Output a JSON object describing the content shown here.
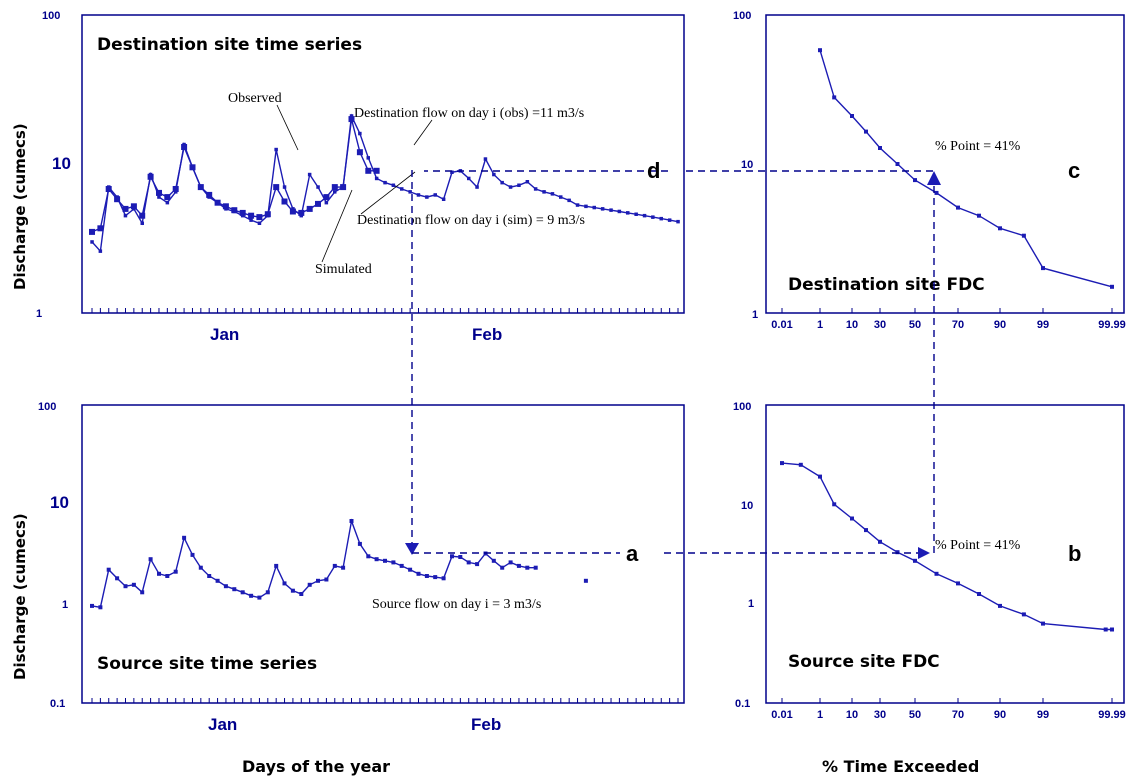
{
  "labels": {
    "ylabel_top": "Discharge (cumecs)",
    "ylabel_bottom": "Discharge (cumecs)",
    "xlabel_days": "Days of the year",
    "xlabel_percent": "% Time Exceeded",
    "letter_a": "a",
    "letter_b": "b",
    "letter_c": "c",
    "letter_d": "d"
  },
  "colors": {
    "series": "#1c1cb4",
    "axes": "#00008B"
  },
  "chart_data": [
    {
      "id": "dest_ts",
      "type": "line",
      "title": "Destination site time series",
      "ylabel": "Discharge (cumecs)",
      "yscale": "log",
      "ylim": [
        1,
        100
      ],
      "yticks": [
        "1",
        "10",
        "100"
      ],
      "xticks": [
        "Jan",
        "Feb"
      ],
      "annotations": {
        "observed": "Observed",
        "simulated": "Simulated",
        "obs_flow": "Destination flow on day i (obs) =11 m3/s",
        "sim_flow": "Destination flow on day i (sim) = 9 m3/s"
      },
      "series": [
        {
          "name": "Observed",
          "x": [
            1,
            2,
            3,
            4,
            5,
            6,
            7,
            8,
            9,
            10,
            11,
            12,
            13,
            14,
            15,
            16,
            17,
            18,
            19,
            20,
            21,
            22,
            23,
            24,
            25,
            26,
            27,
            28,
            29,
            30,
            31,
            32,
            33,
            34,
            35,
            36,
            37,
            38,
            39,
            40,
            41,
            42,
            43,
            44,
            45,
            46,
            47,
            48,
            49,
            50,
            51,
            52,
            53,
            54,
            55,
            56,
            57,
            58,
            59,
            60,
            61,
            62,
            63,
            64,
            65,
            66,
            67,
            68,
            69,
            70,
            71
          ],
          "values": [
            3.0,
            2.6,
            7.0,
            6.0,
            4.5,
            5.0,
            4.0,
            8.5,
            6.0,
            5.5,
            6.5,
            13.5,
            9.5,
            7.0,
            6.0,
            5.5,
            5.0,
            4.8,
            4.5,
            4.2,
            4.0,
            4.5,
            12.5,
            7.0,
            5.0,
            4.5,
            8.5,
            7.0,
            5.5,
            6.5,
            7.0,
            21,
            16,
            11,
            8.0,
            7.5,
            7.2,
            6.8,
            6.5,
            6.2,
            6.0,
            6.2,
            5.8,
            8.8,
            9.0,
            8.0,
            7.0,
            10.8,
            8.5,
            7.5,
            7.0,
            7.2,
            7.6,
            6.8,
            6.5,
            6.3,
            6.0,
            5.7,
            5.3,
            5.2,
            5.1,
            5.0,
            4.9,
            4.8,
            4.7,
            4.6,
            4.5,
            4.4,
            4.3,
            4.2,
            4.1
          ]
        },
        {
          "name": "Simulated",
          "x": [
            1,
            2,
            3,
            4,
            5,
            6,
            7,
            8,
            9,
            10,
            11,
            12,
            13,
            14,
            15,
            16,
            17,
            18,
            19,
            20,
            21,
            22,
            23,
            24,
            25,
            26,
            27,
            28,
            29,
            30,
            31,
            32,
            33,
            34,
            35
          ],
          "values": [
            3.5,
            3.7,
            6.8,
            5.8,
            5.0,
            5.2,
            4.5,
            8.2,
            6.4,
            6.0,
            6.8,
            13.0,
            9.5,
            7.0,
            6.2,
            5.5,
            5.2,
            4.9,
            4.7,
            4.5,
            4.4,
            4.6,
            7.0,
            5.6,
            4.8,
            4.7,
            5.0,
            5.4,
            6.0,
            7.0,
            7.0,
            20,
            12,
            9.0,
            9.0
          ]
        }
      ]
    },
    {
      "id": "dest_fdc",
      "type": "line",
      "title": "Destination site FDC",
      "yscale": "log",
      "ylim": [
        1,
        100
      ],
      "yticks": [
        "1",
        "10",
        "100"
      ],
      "xticks": [
        "0.01",
        "1",
        "10",
        "30",
        "50",
        "70",
        "90",
        "99",
        "99.99"
      ],
      "annotations": {
        "point": "% Point = 41%"
      },
      "series": [
        {
          "name": "",
          "x": [
            1,
            5,
            10,
            20,
            30,
            40,
            50,
            60,
            70,
            80,
            90,
            95,
            99,
            99.99
          ],
          "values": [
            58,
            28,
            21,
            16.5,
            12.8,
            10,
            7.8,
            6.4,
            5.1,
            4.5,
            3.7,
            3.3,
            2.0,
            1.5
          ]
        }
      ]
    },
    {
      "id": "source_ts",
      "type": "line",
      "title": "Source site time series",
      "ylabel": "Discharge (cumecs)",
      "yscale": "log",
      "ylim": [
        0.1,
        100
      ],
      "yticks": [
        "0.1",
        "1",
        "10",
        "100"
      ],
      "xticks": [
        "Jan",
        "Feb"
      ],
      "annotations": {
        "source_flow": "Source flow on day  i = 3  m3/s"
      },
      "series": [
        {
          "name": "",
          "x": [
            1,
            2,
            3,
            4,
            5,
            6,
            7,
            8,
            9,
            10,
            11,
            12,
            13,
            14,
            15,
            16,
            17,
            18,
            19,
            20,
            21,
            22,
            23,
            24,
            25,
            26,
            27,
            28,
            29,
            30,
            31,
            32,
            33,
            34,
            35,
            36,
            37,
            38,
            39,
            40,
            41,
            42,
            43,
            44,
            45,
            46,
            47,
            48,
            49,
            50,
            51,
            52,
            53,
            54,
            55,
            56,
            57,
            58,
            59,
            60
          ],
          "values": [
            0.95,
            0.92,
            2.2,
            1.8,
            1.5,
            1.55,
            1.3,
            2.8,
            2.0,
            1.9,
            2.1,
            4.6,
            3.1,
            2.3,
            1.9,
            1.7,
            1.5,
            1.4,
            1.3,
            1.2,
            1.15,
            1.3,
            2.4,
            1.6,
            1.35,
            1.25,
            1.55,
            1.7,
            1.75,
            2.4,
            2.3,
            6.8,
            4.0,
            3.0,
            2.8,
            2.7,
            2.6,
            2.4,
            2.2,
            2.0,
            1.9,
            1.85,
            1.8,
            3.0,
            2.95,
            2.6,
            2.5,
            3.2,
            2.7,
            2.3,
            2.6,
            2.4,
            2.3,
            2.3,
            null,
            null,
            null,
            null,
            null,
            1.7
          ]
        }
      ]
    },
    {
      "id": "source_fdc",
      "type": "line",
      "title": "Source site FDC",
      "yscale": "log",
      "ylim": [
        0.1,
        100
      ],
      "yticks": [
        "0.1",
        "1",
        "10",
        "100"
      ],
      "xticks": [
        "0.01",
        "1",
        "10",
        "30",
        "50",
        "70",
        "90",
        "99",
        "99.99"
      ],
      "annotations": {
        "point": "% Point = 41%"
      },
      "series": [
        {
          "name": "",
          "x": [
            0.01,
            0.5,
            1,
            5,
            10,
            20,
            30,
            40,
            50,
            60,
            70,
            80,
            90,
            95,
            99,
            99.9,
            99.99
          ],
          "values": [
            26,
            25,
            19,
            10,
            7.2,
            5.5,
            4.2,
            3.3,
            2.7,
            2.0,
            1.6,
            1.25,
            0.95,
            0.78,
            0.63,
            0.55,
            0.55
          ]
        }
      ]
    }
  ]
}
